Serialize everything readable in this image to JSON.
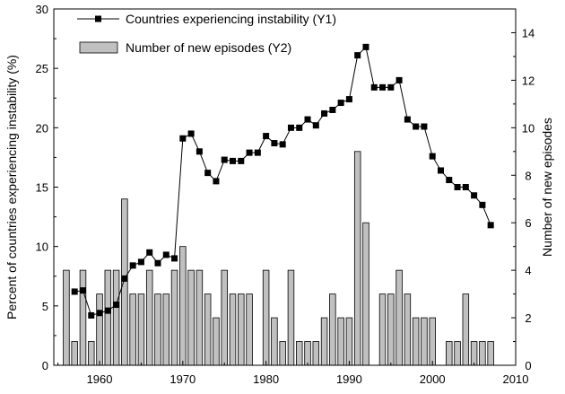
{
  "chart_data": {
    "type": "bar+line",
    "x": [
      1955,
      1956,
      1957,
      1958,
      1959,
      1960,
      1961,
      1962,
      1963,
      1964,
      1965,
      1966,
      1967,
      1968,
      1969,
      1970,
      1971,
      1972,
      1973,
      1974,
      1975,
      1976,
      1977,
      1978,
      1979,
      1980,
      1981,
      1982,
      1983,
      1984,
      1985,
      1986,
      1987,
      1988,
      1989,
      1990,
      1991,
      1992,
      1993,
      1994,
      1995,
      1996,
      1997,
      1998,
      1999,
      2000,
      2001,
      2002,
      2003,
      2004,
      2005,
      2006,
      2007
    ],
    "series": [
      {
        "name": "Countries experiencing instability (Y1)",
        "type": "line",
        "axis": "y1",
        "values": [
          null,
          null,
          6.2,
          6.3,
          4.2,
          4.4,
          4.6,
          5.1,
          7.3,
          8.4,
          8.7,
          9.5,
          8.6,
          9.3,
          9.0,
          19.1,
          19.5,
          18.0,
          16.2,
          15.5,
          17.3,
          17.2,
          17.2,
          17.9,
          17.9,
          19.3,
          18.7,
          18.6,
          20.0,
          20.0,
          20.7,
          20.2,
          21.2,
          21.5,
          22.1,
          22.4,
          26.1,
          26.8,
          23.4,
          23.4,
          23.4,
          24.0,
          20.7,
          20.1,
          20.1,
          17.6,
          16.4,
          15.6,
          15.0,
          15.0,
          14.3,
          13.5,
          11.8
        ]
      },
      {
        "name": "Number of new episodes (Y2)",
        "type": "bar",
        "axis": "y2",
        "values": [
          0,
          4,
          1,
          4,
          1,
          3,
          4,
          4,
          7,
          3,
          3,
          4,
          3,
          3,
          4,
          5,
          4,
          4,
          3,
          2,
          4,
          3,
          3,
          3,
          0,
          4,
          2,
          1,
          4,
          1,
          1,
          1,
          2,
          3,
          2,
          2,
          9,
          6,
          0,
          3,
          3,
          4,
          3,
          2,
          2,
          2,
          0,
          1,
          1,
          3,
          1,
          1,
          1
        ]
      }
    ],
    "y1": {
      "label": "Percent of countries experiencing instability (%)",
      "ylim": [
        0,
        30
      ],
      "ticks": [
        0,
        5,
        10,
        15,
        20,
        25,
        30
      ]
    },
    "y2": {
      "label": "Number of new episodes",
      "ylim": [
        0,
        15
      ],
      "ticks": [
        0,
        2,
        4,
        6,
        8,
        10,
        12,
        14
      ]
    },
    "xaxis": {
      "label": "",
      "xlim": [
        1954.5,
        2010
      ],
      "ticks": [
        1960,
        1970,
        1980,
        1990,
        2000,
        2010
      ]
    },
    "legend_position": "top-left",
    "grid": false
  }
}
